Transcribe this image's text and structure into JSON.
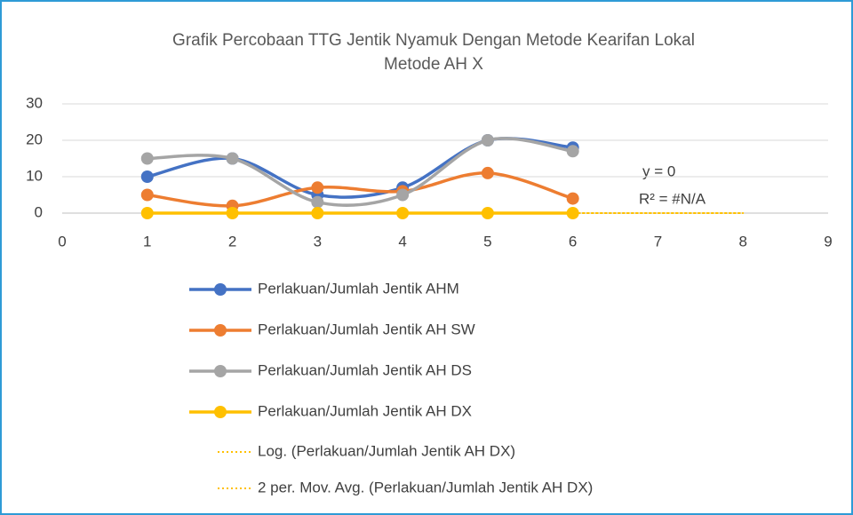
{
  "chart_data": {
    "type": "line",
    "smooth": true,
    "title": [
      "Grafik Percobaan TTG Jentik Nyamuk Dengan Metode Kearifan Lokal",
      "Metode AH X"
    ],
    "x": [
      1,
      2,
      3,
      4,
      5,
      6
    ],
    "series": [
      {
        "name": "Perlakuan/Jumlah Jentik AHM",
        "color": "#4472c4",
        "values": [
          10,
          15,
          5,
          7,
          20,
          18
        ]
      },
      {
        "name": "Perlakuan/Jumlah Jentik AH SW",
        "color": "#ed7d31",
        "values": [
          5,
          2,
          7,
          6,
          11,
          4
        ]
      },
      {
        "name": "Perlakuan/Jumlah Jentik AH DS",
        "color": "#a5a5a5",
        "values": [
          15,
          15,
          3,
          5,
          20,
          17
        ]
      },
      {
        "name": "Perlakuan/Jumlah Jentik AH DX",
        "color": "#ffc000",
        "values": [
          0,
          0,
          0,
          0,
          0,
          0
        ]
      }
    ],
    "trendlines": [
      {
        "name": "Log. (Perlakuan/Jumlah Jentik AH DX)",
        "color": "#ffc000",
        "style": "dotted",
        "x": [
          1,
          8
        ],
        "values": [
          0,
          0
        ]
      },
      {
        "name": "2 per. Mov. Avg. (Perlakuan/Jumlah Jentik AH DX)",
        "color": "#ffc000",
        "style": "dotted",
        "x": [
          2,
          3,
          4,
          5,
          6
        ],
        "values": [
          0,
          0,
          0,
          0,
          0
        ]
      }
    ],
    "annotations": [
      "y = 0",
      "R² = #N/A"
    ],
    "xlim": [
      0,
      9
    ],
    "xticks": [
      0,
      1,
      2,
      3,
      4,
      5,
      6,
      7,
      8,
      9
    ],
    "ylim": [
      0,
      30
    ],
    "yticks": [
      0,
      10,
      20,
      30
    ],
    "grid": true,
    "legend": "bottom"
  }
}
